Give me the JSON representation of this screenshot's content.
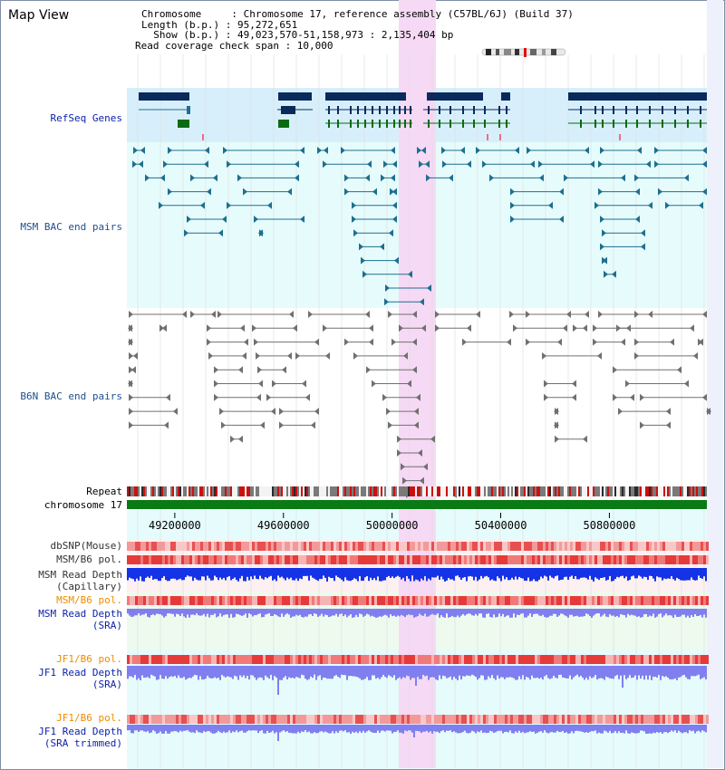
{
  "title": "Map View",
  "info": {
    "chromosome": "Chromosome     : Chromosome 17, reference assembly (C57BL/6J) (Build 37)",
    "length": "Length (b.p.) : 95,272,651",
    "show": "  Show (b.p.) : 49,023,570-51,158,973 : 2,135,404 bp",
    "span": "Read coverage check span : 10,000"
  },
  "tracks": {
    "refseq": "RefSeq Genes",
    "msm_bac": "MSM BAC end pairs",
    "b6n_bac": "B6N BAC end pairs",
    "repeat": "Repeat",
    "chromosome": "chromosome 17",
    "dbsnp": "dbSNP(Mouse)",
    "msm_b6_pol_1": "MSM/B6 pol.",
    "msm_depth_cap": "MSM Read Depth",
    "msm_depth_cap_sub": "(Capillary)",
    "msm_b6_pol_2": "MSM/B6 pol.",
    "msm_depth_sra": "MSM Read Depth",
    "msm_depth_sra_sub": "(SRA)",
    "jf1_b6_pol_1": "JF1/B6 pol.",
    "jf1_depth_sra": "JF1 Read Depth",
    "jf1_depth_sra_sub": "(SRA)",
    "jf1_b6_pol_2": "JF1/B6 pol.",
    "jf1_depth_trim": "JF1 Read Depth",
    "jf1_depth_trim_sub": "(SRA trimmed)"
  },
  "axis": {
    "ticks": [
      "49200000",
      "49600000",
      "50000000",
      "50400000",
      "50800000"
    ],
    "tick_values": [
      49200000,
      49600000,
      50000000,
      50400000,
      50800000
    ],
    "range": [
      49023570,
      51158973
    ]
  },
  "colors": {
    "refseq_bg": "#d7effb",
    "msm_bg": "#e6fcfc",
    "highlight": "#f6d9f4",
    "gene": "#0b2a5c",
    "msm_pair": "#1e6f8f",
    "b6n_pair": "#707070",
    "chromosome": "#0a7a14",
    "depth_dark": "#1432e6",
    "depth_light": "#7f7ff0"
  }
}
